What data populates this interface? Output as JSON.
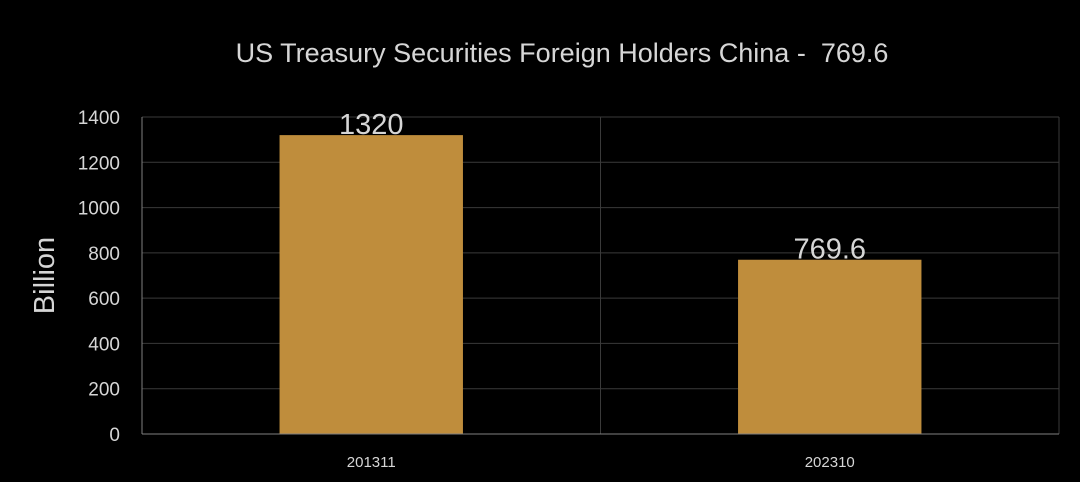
{
  "chart_data": {
    "type": "bar",
    "title": "US Treasury Securities Foreign Holders China -  769.6",
    "xlabel": "",
    "ylabel": "Billion",
    "categories": [
      "201311",
      "202310"
    ],
    "values": [
      1320,
      769.6
    ],
    "data_labels": [
      "1320",
      "769.6"
    ],
    "ylim": [
      0,
      1400
    ],
    "yticks": [
      0,
      200,
      400,
      600,
      800,
      1000,
      1200,
      1400
    ],
    "grid": true,
    "legend": "none"
  },
  "colors": {
    "background": "#000000",
    "bar": "#bf8d3c",
    "grid": "#3a3a3a",
    "axis": "#808080",
    "text": "#d6d6d6"
  }
}
